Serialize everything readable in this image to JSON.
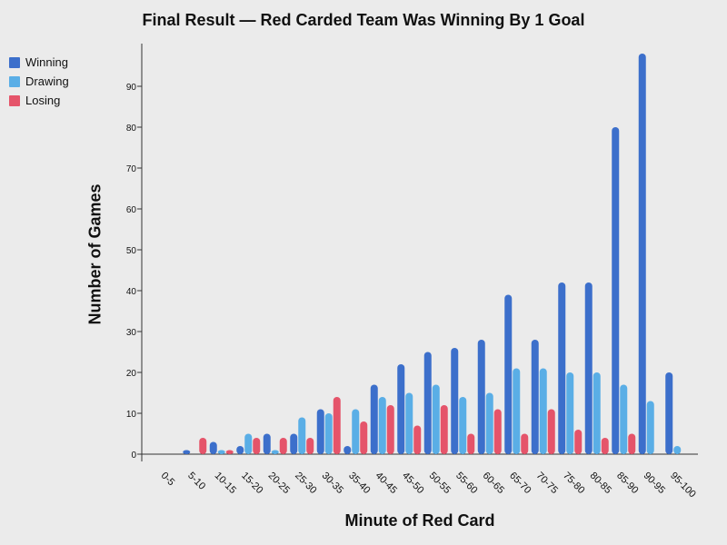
{
  "chart_data": {
    "type": "bar",
    "title": "Final Result — Red Carded Team Was Winning By 1 Goal",
    "xlabel": "Minute of Red Card",
    "ylabel": "Number of Games",
    "ylim": [
      0,
      100
    ],
    "yticks": [
      0,
      10,
      20,
      30,
      40,
      50,
      60,
      70,
      80,
      90
    ],
    "grid": false,
    "legend_position": "top-left",
    "categories": [
      "0-5",
      "5-10",
      "10-15",
      "15-20",
      "20-25",
      "25-30",
      "30-35",
      "35-40",
      "40-45",
      "45-50",
      "50-55",
      "55-60",
      "60-65",
      "65-70",
      "70-75",
      "75-80",
      "80-85",
      "85-90",
      "90-95",
      "95-100"
    ],
    "series": [
      {
        "name": "Winning",
        "color": "#3c6fcb",
        "values": [
          0,
          1,
          3,
          2,
          5,
          5,
          11,
          2,
          17,
          22,
          25,
          26,
          28,
          39,
          28,
          42,
          42,
          80,
          98,
          20
        ]
      },
      {
        "name": "Drawing",
        "color": "#5aaee6",
        "values": [
          0,
          0,
          1,
          5,
          1,
          9,
          10,
          11,
          14,
          15,
          17,
          14,
          15,
          21,
          21,
          20,
          20,
          17,
          13,
          2
        ]
      },
      {
        "name": "Losing",
        "color": "#e5546a",
        "values": [
          0,
          4,
          1,
          4,
          4,
          4,
          14,
          8,
          12,
          7,
          12,
          5,
          11,
          5,
          11,
          6,
          4,
          5,
          0,
          0
        ]
      }
    ]
  }
}
